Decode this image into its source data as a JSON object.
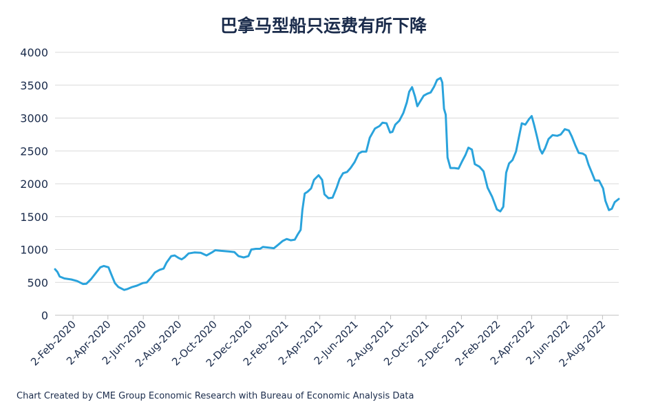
{
  "chart_data": {
    "type": "line",
    "title": "巴拿马型船只运费有所下降",
    "xlabel": "",
    "ylabel": "",
    "ylim": [
      0,
      4000
    ],
    "yticks": [
      0,
      500,
      1000,
      1500,
      2000,
      2500,
      3000,
      3500,
      4000
    ],
    "xlim": [
      "2020-01-02",
      "2022-08-30"
    ],
    "xtick_labels": [
      "2-Feb-2020",
      "2-Apr-2020",
      "2-Jun-2020",
      "2-Aug-2020",
      "2-Oct-2020",
      "2-Dec-2020",
      "2-Feb-2021",
      "2-Apr-2021",
      "2-Jun-2021",
      "2-Aug-2021",
      "2-Oct-2021",
      "2-Dec-2021",
      "2-Feb-2022",
      "2-Apr-2022",
      "2-Jun-2022",
      "2-Aug-2022"
    ],
    "xtick_dates": [
      "2020-02-02",
      "2020-04-02",
      "2020-06-02",
      "2020-08-02",
      "2020-10-02",
      "2020-12-02",
      "2021-02-02",
      "2021-04-02",
      "2021-06-02",
      "2021-08-02",
      "2021-10-02",
      "2021-12-02",
      "2022-02-02",
      "2022-04-02",
      "2022-06-02",
      "2022-08-02"
    ],
    "grid": "horizontal",
    "series": [
      {
        "color": "#2aa3dc",
        "points": [
          [
            "2020-01-02",
            700
          ],
          [
            "2020-01-06",
            660
          ],
          [
            "2020-01-10",
            590
          ],
          [
            "2020-01-18",
            560
          ],
          [
            "2020-01-30",
            545
          ],
          [
            "2020-02-09",
            520
          ],
          [
            "2020-02-19",
            475
          ],
          [
            "2020-02-25",
            480
          ],
          [
            "2020-03-04",
            550
          ],
          [
            "2020-03-12",
            640
          ],
          [
            "2020-03-20",
            730
          ],
          [
            "2020-03-26",
            750
          ],
          [
            "2020-04-03",
            730
          ],
          [
            "2020-04-08",
            620
          ],
          [
            "2020-04-14",
            490
          ],
          [
            "2020-04-20",
            430
          ],
          [
            "2020-04-30",
            385
          ],
          [
            "2020-05-06",
            400
          ],
          [
            "2020-05-14",
            430
          ],
          [
            "2020-05-22",
            450
          ],
          [
            "2020-06-01",
            490
          ],
          [
            "2020-06-08",
            500
          ],
          [
            "2020-06-15",
            570
          ],
          [
            "2020-06-22",
            650
          ],
          [
            "2020-06-30",
            690
          ],
          [
            "2020-07-07",
            710
          ],
          [
            "2020-07-12",
            800
          ],
          [
            "2020-07-20",
            900
          ],
          [
            "2020-07-26",
            910
          ],
          [
            "2020-08-02",
            870
          ],
          [
            "2020-08-07",
            850
          ],
          [
            "2020-08-12",
            880
          ],
          [
            "2020-08-19",
            940
          ],
          [
            "2020-08-29",
            955
          ],
          [
            "2020-09-09",
            950
          ],
          [
            "2020-09-19",
            910
          ],
          [
            "2020-09-29",
            960
          ],
          [
            "2020-10-04",
            990
          ],
          [
            "2020-10-14",
            980
          ],
          [
            "2020-10-28",
            970
          ],
          [
            "2020-11-06",
            960
          ],
          [
            "2020-11-13",
            900
          ],
          [
            "2020-11-22",
            880
          ],
          [
            "2020-11-30",
            900
          ],
          [
            "2020-12-05",
            1000
          ],
          [
            "2020-12-13",
            1010
          ],
          [
            "2020-12-20",
            1010
          ],
          [
            "2020-12-25",
            1040
          ],
          [
            "2021-01-03",
            1030
          ],
          [
            "2021-01-13",
            1020
          ],
          [
            "2021-01-20",
            1070
          ],
          [
            "2021-01-28",
            1130
          ],
          [
            "2021-02-04",
            1160
          ],
          [
            "2021-02-11",
            1140
          ],
          [
            "2021-02-18",
            1150
          ],
          [
            "2021-02-23",
            1230
          ],
          [
            "2021-02-28",
            1300
          ],
          [
            "2021-03-03",
            1600
          ],
          [
            "2021-03-07",
            1850
          ],
          [
            "2021-03-12",
            1880
          ],
          [
            "2021-03-18",
            1930
          ],
          [
            "2021-03-23",
            2060
          ],
          [
            "2021-03-31",
            2130
          ],
          [
            "2021-04-06",
            2060
          ],
          [
            "2021-04-10",
            1840
          ],
          [
            "2021-04-17",
            1780
          ],
          [
            "2021-04-24",
            1790
          ],
          [
            "2021-05-01",
            1940
          ],
          [
            "2021-05-06",
            2070
          ],
          [
            "2021-05-12",
            2160
          ],
          [
            "2021-05-19",
            2180
          ],
          [
            "2021-05-25",
            2240
          ],
          [
            "2021-06-01",
            2330
          ],
          [
            "2021-06-08",
            2460
          ],
          [
            "2021-06-14",
            2490
          ],
          [
            "2021-06-21",
            2490
          ],
          [
            "2021-06-27",
            2700
          ],
          [
            "2021-07-06",
            2840
          ],
          [
            "2021-07-14",
            2880
          ],
          [
            "2021-07-19",
            2930
          ],
          [
            "2021-07-26",
            2920
          ],
          [
            "2021-08-01",
            2780
          ],
          [
            "2021-08-05",
            2790
          ],
          [
            "2021-08-10",
            2900
          ],
          [
            "2021-08-17",
            2960
          ],
          [
            "2021-08-24",
            3080
          ],
          [
            "2021-08-30",
            3240
          ],
          [
            "2021-09-03",
            3400
          ],
          [
            "2021-09-08",
            3470
          ],
          [
            "2021-09-13",
            3330
          ],
          [
            "2021-09-17",
            3180
          ],
          [
            "2021-09-21",
            3240
          ],
          [
            "2021-09-28",
            3340
          ],
          [
            "2021-10-04",
            3370
          ],
          [
            "2021-10-10",
            3390
          ],
          [
            "2021-10-16",
            3480
          ],
          [
            "2021-10-21",
            3580
          ],
          [
            "2021-10-27",
            3610
          ],
          [
            "2021-10-30",
            3540
          ],
          [
            "2021-11-02",
            3140
          ],
          [
            "2021-11-05",
            3050
          ],
          [
            "2021-11-08",
            2400
          ],
          [
            "2021-11-13",
            2240
          ],
          [
            "2021-11-20",
            2240
          ],
          [
            "2021-11-27",
            2230
          ],
          [
            "2021-12-03",
            2340
          ],
          [
            "2021-12-09",
            2440
          ],
          [
            "2021-12-14",
            2550
          ],
          [
            "2021-12-20",
            2520
          ],
          [
            "2021-12-25",
            2300
          ],
          [
            "2022-01-02",
            2260
          ],
          [
            "2022-01-09",
            2190
          ],
          [
            "2022-01-16",
            1940
          ],
          [
            "2022-01-24",
            1800
          ],
          [
            "2022-02-01",
            1610
          ],
          [
            "2022-02-07",
            1580
          ],
          [
            "2022-02-12",
            1650
          ],
          [
            "2022-02-17",
            2170
          ],
          [
            "2022-02-22",
            2310
          ],
          [
            "2022-02-28",
            2360
          ],
          [
            "2022-03-06",
            2490
          ],
          [
            "2022-03-11",
            2710
          ],
          [
            "2022-03-16",
            2920
          ],
          [
            "2022-03-22",
            2900
          ],
          [
            "2022-03-28",
            2980
          ],
          [
            "2022-04-02",
            3030
          ],
          [
            "2022-04-06",
            2900
          ],
          [
            "2022-04-11",
            2720
          ],
          [
            "2022-04-16",
            2530
          ],
          [
            "2022-04-20",
            2460
          ],
          [
            "2022-04-25",
            2540
          ],
          [
            "2022-05-01",
            2680
          ],
          [
            "2022-05-08",
            2740
          ],
          [
            "2022-05-16",
            2730
          ],
          [
            "2022-05-22",
            2750
          ],
          [
            "2022-05-29",
            2830
          ],
          [
            "2022-06-05",
            2810
          ],
          [
            "2022-06-10",
            2720
          ],
          [
            "2022-06-16",
            2590
          ],
          [
            "2022-06-22",
            2470
          ],
          [
            "2022-06-29",
            2460
          ],
          [
            "2022-07-04",
            2430
          ],
          [
            "2022-07-09",
            2290
          ],
          [
            "2022-07-15",
            2160
          ],
          [
            "2022-07-20",
            2050
          ],
          [
            "2022-07-27",
            2050
          ],
          [
            "2022-08-03",
            1930
          ],
          [
            "2022-08-07",
            1740
          ],
          [
            "2022-08-13",
            1600
          ],
          [
            "2022-08-18",
            1620
          ],
          [
            "2022-08-23",
            1720
          ],
          [
            "2022-08-30",
            1770
          ]
        ]
      }
    ]
  },
  "footer": {
    "note": "Chart Created by CME Group Economic Research with Bureau of Economic Analysis Data"
  }
}
